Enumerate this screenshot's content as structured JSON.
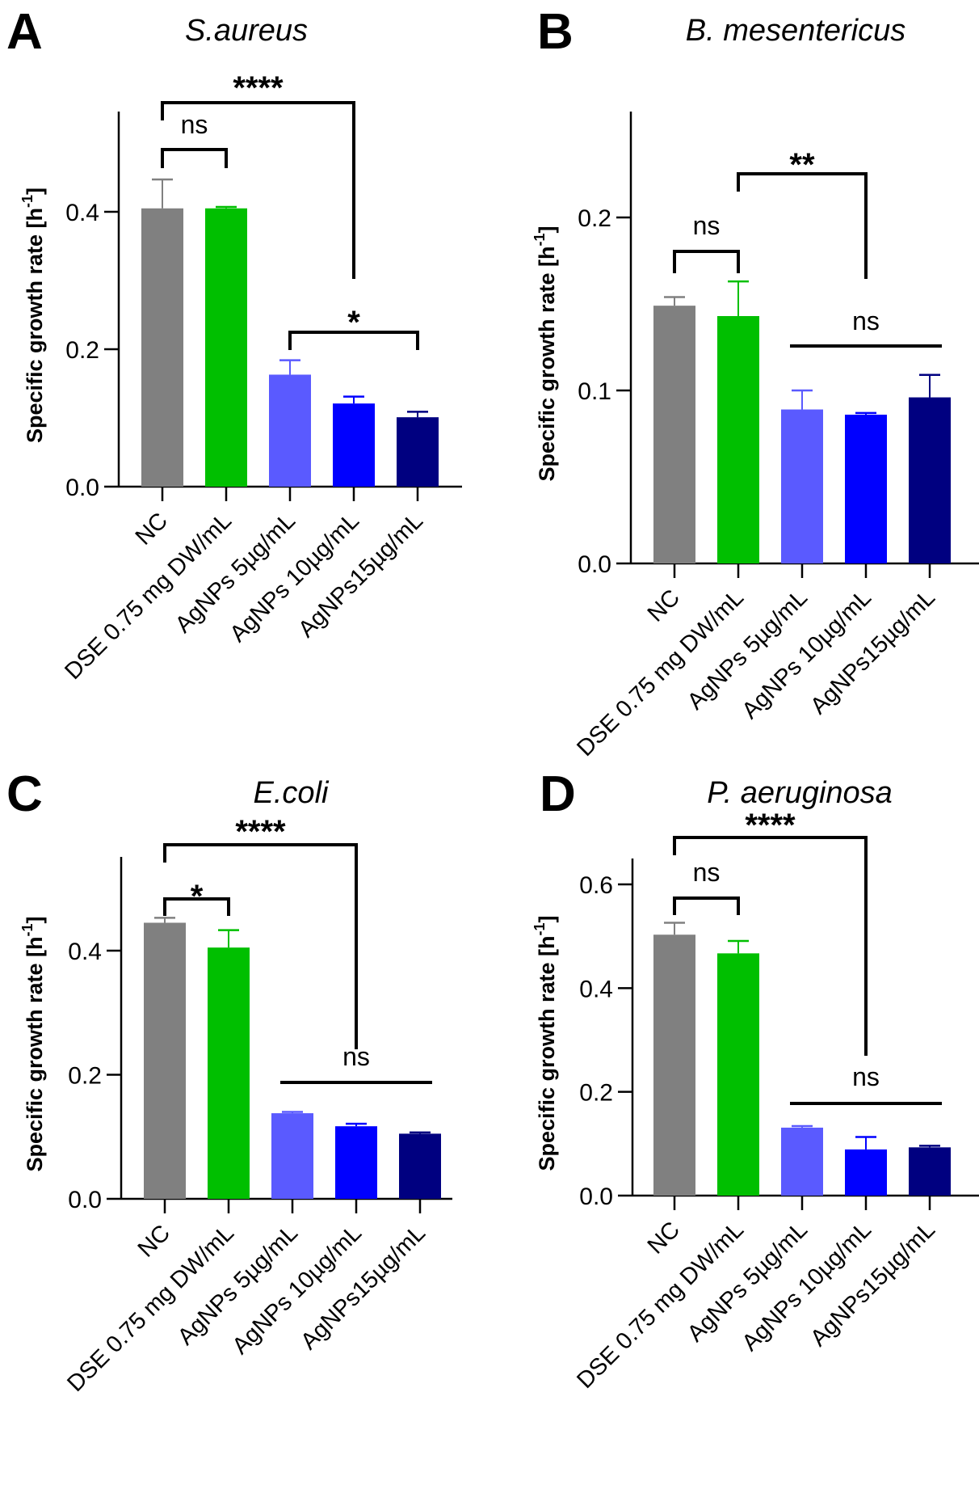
{
  "chart_data": [
    {
      "type": "bar",
      "panel": "A",
      "title": "S.aureus",
      "xlabel": "",
      "ylabel": "Specific growth rate [h-1]",
      "ylabel_main": "Specific growth rate [h",
      "ylabel_sup": "-1",
      "ylabel_end": "]",
      "ylim": [
        0,
        0.5
      ],
      "yticks": [
        0.0,
        0.2,
        0.4
      ],
      "ytick_labels": [
        "0.0",
        "0.2",
        "0.4"
      ],
      "categories": [
        "NC",
        "DSE 0.75 mg DW/mL",
        "AgNPs 5µg/mL",
        "AgNPs 10µg/mL",
        "AgNPs15µg/mL"
      ],
      "values": [
        0.405,
        0.405,
        0.163,
        0.121,
        0.101
      ],
      "errors": [
        0.042,
        0.002,
        0.021,
        0.01,
        0.008
      ],
      "colors": [
        "#808080",
        "#00bf00",
        "#5a5aff",
        "#0000ff",
        "#000080"
      ],
      "significance": [
        {
          "from": 0,
          "to": 1,
          "label": "ns",
          "style": "bracket"
        },
        {
          "from": 0,
          "to": 3,
          "label": "****",
          "style": "bracket-long-right"
        },
        {
          "from": 2,
          "to": 4,
          "label": "*",
          "style": "bracket"
        }
      ],
      "grid": false
    },
    {
      "type": "bar",
      "panel": "B",
      "title": "B. mesentericus",
      "xlabel": "",
      "ylabel": "Specific growth rate [h-1]",
      "ylabel_main": "Specific growth rate [h",
      "ylabel_sup": "-1",
      "ylabel_end": "]",
      "ylim": [
        0,
        0.25
      ],
      "yticks": [
        0.0,
        0.1,
        0.2
      ],
      "ytick_labels": [
        "0.0",
        "0.1",
        "0.2"
      ],
      "categories": [
        "NC",
        "DSE 0.75 mg DW/mL",
        "AgNPs 5µg/mL",
        "AgNPs 10µg/mL",
        "AgNPs15µg/mL"
      ],
      "values": [
        0.149,
        0.143,
        0.089,
        0.086,
        0.096
      ],
      "errors": [
        0.005,
        0.02,
        0.011,
        0.001,
        0.013
      ],
      "colors": [
        "#808080",
        "#00bf00",
        "#5a5aff",
        "#0000ff",
        "#000080"
      ],
      "significance": [
        {
          "from": 0,
          "to": 1,
          "label": "ns",
          "style": "bracket"
        },
        {
          "from": 1,
          "to": 3,
          "label": "**",
          "style": "bracket-long-right"
        },
        {
          "from": 2,
          "to": 4,
          "label": "ns",
          "style": "line"
        }
      ],
      "grid": false
    },
    {
      "type": "bar",
      "panel": "C",
      "title": "E.coli",
      "xlabel": "",
      "ylabel": "Specific growth rate [h-1]",
      "ylabel_main": "Specific growth rate [h",
      "ylabel_sup": "-1",
      "ylabel_end": "]",
      "ylim": [
        0,
        0.5
      ],
      "yticks": [
        0.0,
        0.2,
        0.4
      ],
      "ytick_labels": [
        "0.0",
        "0.2",
        "0.4"
      ],
      "categories": [
        "NC",
        "DSE 0.75 mg DW/mL",
        "AgNPs 5µg/mL",
        "AgNPs 10µg/mL",
        "AgNPs15µg/mL"
      ],
      "values": [
        0.445,
        0.405,
        0.138,
        0.117,
        0.105
      ],
      "errors": [
        0.008,
        0.028,
        0.002,
        0.004,
        0.002
      ],
      "colors": [
        "#808080",
        "#00bf00",
        "#5a5aff",
        "#0000ff",
        "#000080"
      ],
      "significance": [
        {
          "from": 0,
          "to": 1,
          "label": "*",
          "style": "bracket"
        },
        {
          "from": 0,
          "to": 3,
          "label": "****",
          "style": "bracket-long-right"
        },
        {
          "from": 2,
          "to": 4,
          "label": "ns",
          "style": "line"
        }
      ],
      "grid": false
    },
    {
      "type": "bar",
      "panel": "D",
      "title": "P. aeruginosa",
      "xlabel": "",
      "ylabel": "Specific growth rate [h-1]",
      "ylabel_main": "Specific growth rate [h",
      "ylabel_sup": "-1",
      "ylabel_end": "]",
      "ylim": [
        0,
        0.65
      ],
      "yticks": [
        0.0,
        0.2,
        0.4,
        0.6
      ],
      "ytick_labels": [
        "0.0",
        "0.2",
        "0.4",
        "0.6"
      ],
      "categories": [
        "NC",
        "DSE 0.75 mg DW/mL",
        "AgNPs 5µg/mL",
        "AgNPs 10µg/mL",
        "AgNPs15µg/mL"
      ],
      "values": [
        0.503,
        0.467,
        0.131,
        0.089,
        0.093
      ],
      "errors": [
        0.023,
        0.024,
        0.003,
        0.024,
        0.003
      ],
      "colors": [
        "#808080",
        "#00bf00",
        "#5a5aff",
        "#0000ff",
        "#000080"
      ],
      "significance": [
        {
          "from": 0,
          "to": 1,
          "label": "ns",
          "style": "bracket"
        },
        {
          "from": 0,
          "to": 3,
          "label": "****",
          "style": "bracket-long-right"
        },
        {
          "from": 2,
          "to": 4,
          "label": "ns",
          "style": "line"
        }
      ],
      "grid": false
    }
  ]
}
